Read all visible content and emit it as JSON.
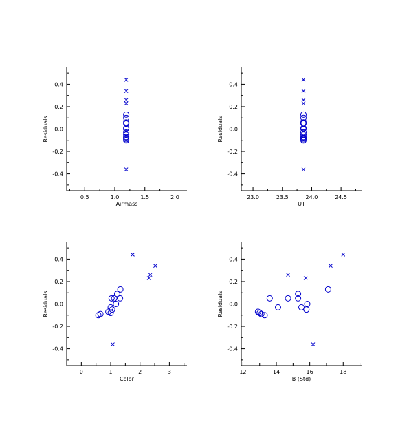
{
  "colors": {
    "marker": "#0000cc",
    "zero_line": "#cc0000",
    "axes": "#000000"
  },
  "chart_data": [
    {
      "type": "scatter",
      "xlabel": "Airmass",
      "ylabel": "Residuals",
      "xlim": [
        0.2,
        2.2
      ],
      "ylim": [
        -0.55,
        0.55
      ],
      "xticks": [
        0.5,
        1.0,
        1.5,
        2.0
      ],
      "xticklabels": [
        "0.5",
        "1.0",
        "1.5",
        "2.0"
      ],
      "yticks": [
        -0.4,
        -0.2,
        0.0,
        0.2,
        0.4
      ],
      "yticklabels": [
        "-0.4",
        "-0.2",
        "0.0",
        "0.2",
        "0.4"
      ],
      "reference_line": {
        "y": 0,
        "style": "dash-dot"
      },
      "series": [
        {
          "marker": "circle",
          "points": [
            [
              1.19,
              0.13
            ],
            [
              1.19,
              0.1
            ],
            [
              1.19,
              0.06
            ],
            [
              1.19,
              0.05
            ],
            [
              1.19,
              0.01
            ],
            [
              1.19,
              0.0
            ],
            [
              1.19,
              -0.03
            ],
            [
              1.19,
              -0.05
            ],
            [
              1.19,
              -0.07
            ],
            [
              1.19,
              -0.08
            ],
            [
              1.19,
              -0.09
            ],
            [
              1.19,
              -0.1
            ]
          ]
        },
        {
          "marker": "x",
          "points": [
            [
              1.19,
              0.44
            ],
            [
              1.19,
              0.34
            ],
            [
              1.19,
              0.26
            ],
            [
              1.19,
              0.23
            ],
            [
              1.19,
              -0.36
            ]
          ]
        }
      ]
    },
    {
      "type": "scatter",
      "xlabel": "UT",
      "ylabel": "Residuals",
      "xlim": [
        22.8,
        24.85
      ],
      "ylim": [
        -0.55,
        0.55
      ],
      "xticks": [
        23.0,
        23.5,
        24.0,
        24.5
      ],
      "xticklabels": [
        "23.0",
        "23.5",
        "24.0",
        "24.5"
      ],
      "yticks": [
        -0.4,
        -0.2,
        0.0,
        0.2,
        0.4
      ],
      "yticklabels": [
        "-0.4",
        "-0.2",
        "0.0",
        "0.2",
        "0.4"
      ],
      "reference_line": {
        "y": 0,
        "style": "dash-dot"
      },
      "series": [
        {
          "marker": "circle",
          "points": [
            [
              23.86,
              0.13
            ],
            [
              23.86,
              0.1
            ],
            [
              23.86,
              0.06
            ],
            [
              23.86,
              0.05
            ],
            [
              23.86,
              0.01
            ],
            [
              23.86,
              0.0
            ],
            [
              23.86,
              -0.03
            ],
            [
              23.86,
              -0.05
            ],
            [
              23.86,
              -0.07
            ],
            [
              23.86,
              -0.08
            ],
            [
              23.86,
              -0.09
            ],
            [
              23.86,
              -0.1
            ]
          ]
        },
        {
          "marker": "x",
          "points": [
            [
              23.86,
              0.44
            ],
            [
              23.86,
              0.34
            ],
            [
              23.86,
              0.26
            ],
            [
              23.86,
              0.23
            ],
            [
              23.86,
              -0.36
            ]
          ]
        }
      ]
    },
    {
      "type": "scatter",
      "xlabel": "Color",
      "ylabel": "Residuals",
      "xlim": [
        -0.5,
        3.6
      ],
      "ylim": [
        -0.55,
        0.55
      ],
      "xticks": [
        0,
        1,
        2,
        3
      ],
      "xticklabels": [
        "0",
        "1",
        "2",
        "3"
      ],
      "yticks": [
        -0.4,
        -0.2,
        0.0,
        0.2,
        0.4
      ],
      "yticklabels": [
        "-0.4",
        "-0.2",
        "0.0",
        "0.2",
        "0.4"
      ],
      "reference_line": {
        "y": 0,
        "style": "dash-dot"
      },
      "series": [
        {
          "marker": "circle",
          "points": [
            [
              0.58,
              -0.1
            ],
            [
              0.65,
              -0.09
            ],
            [
              0.92,
              -0.07
            ],
            [
              1.0,
              -0.08
            ],
            [
              1.0,
              -0.03
            ],
            [
              1.05,
              -0.05
            ],
            [
              1.03,
              0.05
            ],
            [
              1.12,
              0.05
            ],
            [
              1.18,
              0.0
            ],
            [
              1.22,
              0.09
            ],
            [
              1.32,
              0.05
            ],
            [
              1.33,
              0.13
            ]
          ]
        },
        {
          "marker": "x",
          "points": [
            [
              1.75,
              0.44
            ],
            [
              2.52,
              0.34
            ],
            [
              2.35,
              0.26
            ],
            [
              2.3,
              0.23
            ],
            [
              1.07,
              -0.36
            ]
          ]
        }
      ]
    },
    {
      "type": "scatter",
      "xlabel": "B (Std)",
      "ylabel": "Residuals",
      "xlim": [
        11.9,
        19.1
      ],
      "ylim": [
        -0.55,
        0.55
      ],
      "xticks": [
        12,
        14,
        16,
        18
      ],
      "xticklabels": [
        "12",
        "14",
        "16",
        "18"
      ],
      "yticks": [
        -0.4,
        -0.2,
        0.0,
        0.2,
        0.4
      ],
      "yticklabels": [
        "-0.4",
        "-0.2",
        "0.0",
        "0.2",
        "0.4"
      ],
      "reference_line": {
        "y": 0,
        "style": "dash-dot"
      },
      "series": [
        {
          "marker": "circle",
          "points": [
            [
              12.9,
              -0.07
            ],
            [
              13.0,
              -0.08
            ],
            [
              13.1,
              -0.09
            ],
            [
              13.3,
              -0.1
            ],
            [
              13.6,
              0.05
            ],
            [
              14.1,
              -0.03
            ],
            [
              14.7,
              0.05
            ],
            [
              15.3,
              0.09
            ],
            [
              15.3,
              0.05
            ],
            [
              15.5,
              -0.03
            ],
            [
              15.8,
              -0.05
            ],
            [
              15.85,
              0.0
            ],
            [
              17.1,
              0.13
            ]
          ]
        },
        {
          "marker": "x",
          "points": [
            [
              14.7,
              0.26
            ],
            [
              15.75,
              0.23
            ],
            [
              16.2,
              -0.36
            ],
            [
              17.25,
              0.34
            ],
            [
              18.0,
              0.44
            ]
          ]
        }
      ]
    }
  ]
}
